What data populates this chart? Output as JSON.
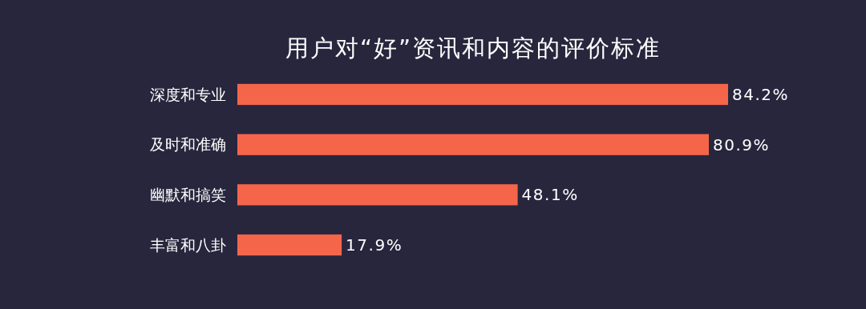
{
  "chart_data": {
    "type": "bar",
    "orientation": "horizontal",
    "title": "用户对“好”资讯和内容的评价标准",
    "categories": [
      "深度和专业",
      "及时和准确",
      "幽默和搞笑",
      "丰富和八卦"
    ],
    "values": [
      84.2,
      80.9,
      48.1,
      17.9
    ],
    "value_labels": [
      "84.2%",
      "80.9%",
      "48.1%",
      "17.9%"
    ],
    "color": "#f5654a"
  }
}
